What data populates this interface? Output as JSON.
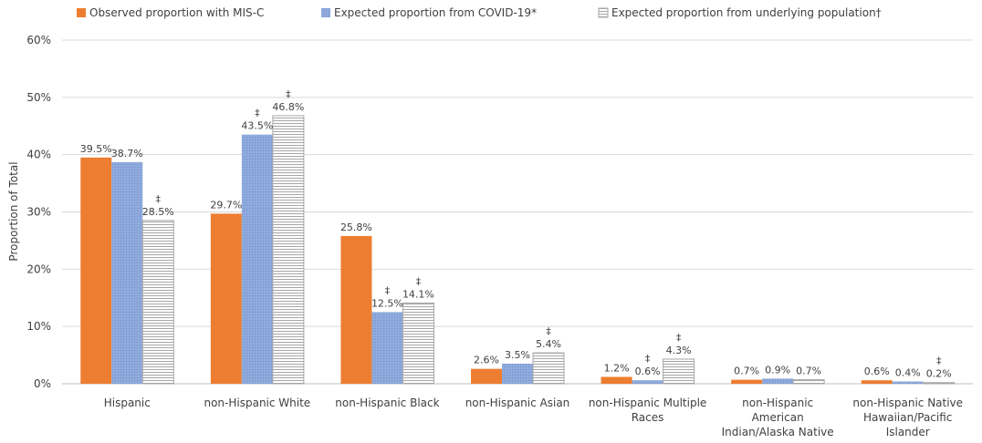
{
  "chart_data": {
    "type": "bar",
    "title": "",
    "xlabel": "",
    "ylabel": "Proportion of Total",
    "ylim": [
      0,
      60
    ],
    "yticks": [
      "0%",
      "10%",
      "20%",
      "30%",
      "40%",
      "50%",
      "60%"
    ],
    "grid": true,
    "legend_position": "top",
    "categories": [
      [
        "Hispanic"
      ],
      [
        "non-Hispanic White"
      ],
      [
        "non-Hispanic Black"
      ],
      [
        "non-Hispanic Asian"
      ],
      [
        "non-Hispanic Multiple",
        "Races"
      ],
      [
        "non-Hispanic",
        "American",
        "Indian/Alaska Native"
      ],
      [
        "non-Hispanic Native",
        "Hawaiian/Pacific",
        "Islander"
      ]
    ],
    "series": [
      {
        "name": "Observed proportion with MIS-C",
        "color": "#ED7D31",
        "pattern": "solid",
        "values": [
          39.5,
          29.7,
          25.8,
          2.6,
          1.2,
          0.7,
          0.6
        ],
        "labels": [
          "39.5%",
          "29.7%",
          "25.8%",
          "2.6%",
          "1.2%",
          "0.7%",
          "0.6%"
        ],
        "significant": [
          false,
          false,
          false,
          false,
          false,
          false,
          false
        ]
      },
      {
        "name": "Expected proportion from COVID-19*",
        "color": "#8FAADC",
        "pattern": "dotted",
        "values": [
          38.7,
          43.5,
          12.5,
          3.5,
          0.6,
          0.9,
          0.4
        ],
        "labels": [
          "38.7%",
          "43.5%",
          "12.5%",
          "3.5%",
          "0.6%",
          "0.9%",
          "0.4%"
        ],
        "significant": [
          false,
          true,
          true,
          false,
          true,
          false,
          false
        ]
      },
      {
        "name": "Expected proportion from underlying population†",
        "color": "#FFFFFF",
        "pattern": "horizontal-lines",
        "values": [
          28.5,
          46.8,
          14.1,
          5.4,
          4.3,
          0.7,
          0.2
        ],
        "labels": [
          "28.5%",
          "46.8%",
          "14.1%",
          "5.4%",
          "4.3%",
          "0.7%",
          "0.2%"
        ],
        "significant": [
          true,
          true,
          true,
          true,
          true,
          false,
          true
        ]
      }
    ],
    "significance_marker": "‡"
  }
}
